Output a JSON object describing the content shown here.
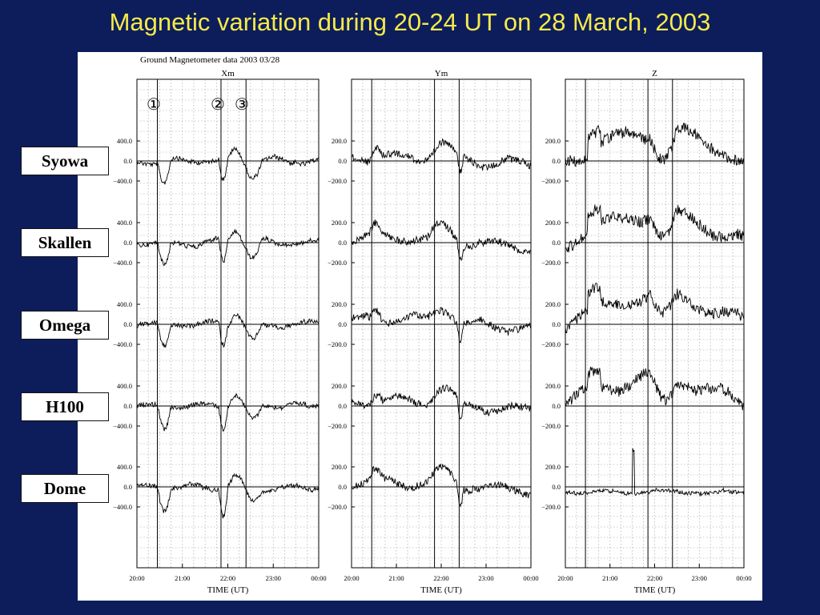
{
  "slide_title": "Magnetic variation during 20-24 UT on 28 March, 2003",
  "header": {
    "label": "Ground Magnetometer data",
    "date": "2003 03/28"
  },
  "markers": [
    "①",
    "②",
    "③"
  ],
  "stations": [
    "Syowa",
    "Skallen",
    "Omega",
    "H100",
    "Dome"
  ],
  "chart_data": {
    "type": "line",
    "xlabel": "TIME (UT)",
    "x_ticks": [
      "20:00",
      "21:00",
      "22:00",
      "23:00",
      "00:00"
    ],
    "x_range_hours": [
      20,
      24
    ],
    "event_times_hours": [
      20.45,
      21.85,
      22.4
    ],
    "grid": true,
    "components": [
      {
        "name": "Xm",
        "tick_labels": [
          "400.0",
          "0.0",
          "−400.0"
        ],
        "ticks": [
          400,
          0,
          -400
        ]
      },
      {
        "name": "Ym",
        "tick_labels": [
          "200.0",
          "0.0",
          "−200.0"
        ],
        "ticks": [
          200,
          0,
          -200
        ]
      },
      {
        "name": "Z",
        "tick_labels": [
          "200.0",
          "0.0",
          "−200.0"
        ],
        "ticks": [
          200,
          0,
          -200
        ]
      }
    ]
  }
}
